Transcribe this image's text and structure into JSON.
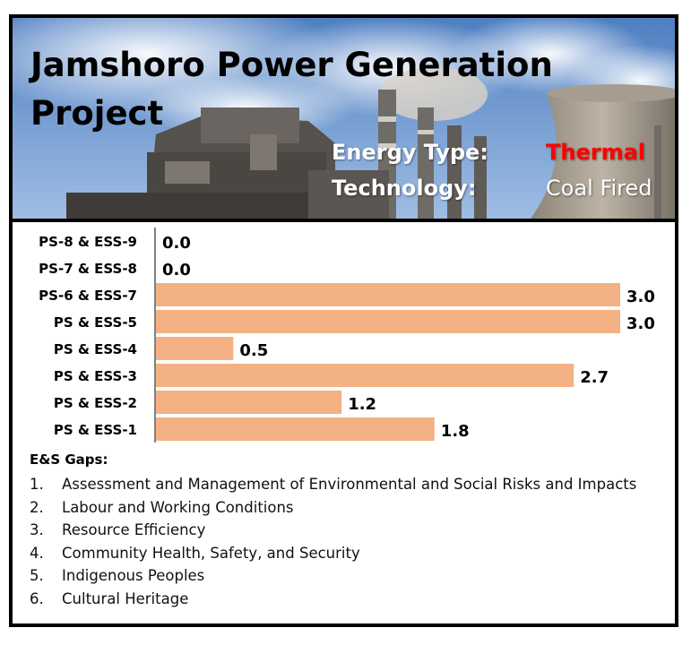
{
  "header": {
    "title_lines": [
      "Jamshoro Power Generation",
      "Project"
    ],
    "energy_type_label": "Energy Type:",
    "energy_type_value": "Thermal",
    "technology_label": "Technology:",
    "technology_value": "Coal Fired"
  },
  "colors": {
    "bar": "#F4B183",
    "thermal": "#FF0000",
    "frame": "#000000",
    "sky": "#5B86C6"
  },
  "icons": [
    "power-plant-photo"
  ],
  "chart_data": {
    "type": "bar",
    "orientation": "horizontal",
    "categories": [
      "PS-8 & ESS-9",
      "PS-7 & ESS-8",
      "PS-6 & ESS-7",
      "PS & ESS-5",
      "PS & ESS-4",
      "PS & ESS-3",
      "PS & ESS-2",
      "PS & ESS-1"
    ],
    "values": [
      0.0,
      0.0,
      3.0,
      3.0,
      0.5,
      2.7,
      1.2,
      1.8
    ],
    "value_labels": [
      "0.0",
      "0.0",
      "3.0",
      "3.0",
      "0.5",
      "2.7",
      "1.2",
      "1.8"
    ],
    "xlim": [
      0,
      3
    ],
    "grid": false,
    "legend": "none",
    "title": "",
    "xlabel": "",
    "ylabel": ""
  },
  "gaps": {
    "title": "E&S Gaps:",
    "items": [
      {
        "num": "1.",
        "text": "Assessment and Management of Environmental and Social Risks and Impacts"
      },
      {
        "num": "2.",
        "text": "Labour and Working Conditions"
      },
      {
        "num": "3.",
        "text": "Resource Efficiency"
      },
      {
        "num": "4.",
        "text": "Community Health, Safety, and Security"
      },
      {
        "num": "5.",
        "text": "Indigenous Peoples"
      },
      {
        "num": "6.",
        "text": "Cultural Heritage"
      }
    ]
  }
}
